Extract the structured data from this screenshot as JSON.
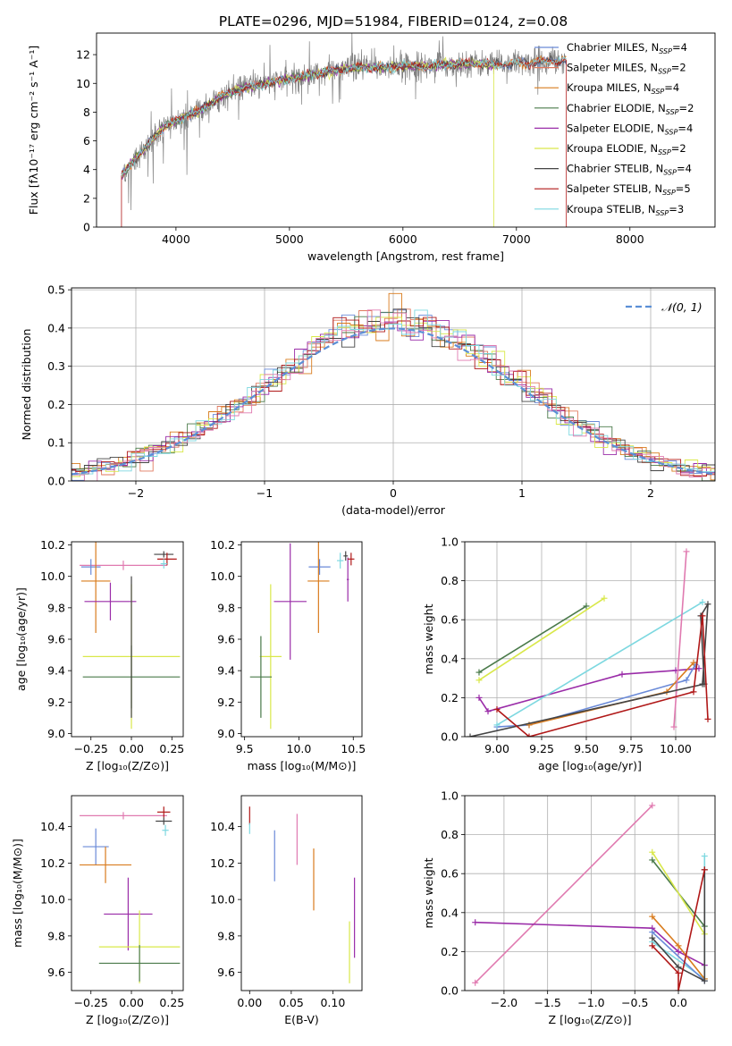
{
  "figure_title": "PLATE=0296, MJD=51984, FIBERID=0124, z=0.08",
  "colors": {
    "chabrier_miles": "#6a8ad8",
    "salpeter_miles": "#e07a5f",
    "kroupa_miles": "#d97c1e",
    "chabrier_elodie": "#4a7a4a",
    "salpeter_elodie": "#9a2ca8",
    "kroupa_elodie": "#d9e84a",
    "chabrier_stelib": "#444444",
    "salpeter_stelib": "#b01818",
    "kroupa_stelib": "#7dd8e0",
    "pink": "#e07ab0",
    "data": "#808080",
    "normal": "#5b8fd6"
  },
  "chart_data": [
    {
      "id": "spectrum",
      "type": "line",
      "title": "",
      "xlabel": "wavelength [Angstrom, rest frame]",
      "ylabel": "Flux [fλ10⁻¹⁷ erg cm⁻² s⁻¹ A⁻¹]",
      "xlim": [
        3300,
        8750
      ],
      "ylim": [
        0,
        13.5
      ],
      "xticks": [
        4000,
        5000,
        6000,
        7000,
        8000
      ],
      "yticks": [
        0,
        2,
        4,
        6,
        8,
        10,
        12
      ],
      "grid": false,
      "legend_position": "right",
      "legend": [
        {
          "label": "Chabrier MILES, N",
          "sub": "SSP",
          "tail": "=4",
          "color_key": "chabrier_miles"
        },
        {
          "label": "Salpeter MILES, N",
          "sub": "SSP",
          "tail": "=2",
          "color_key": "salpeter_miles"
        },
        {
          "label": "Kroupa MILES, N",
          "sub": "SSP",
          "tail": "=4",
          "color_key": "kroupa_miles"
        },
        {
          "label": "Chabrier ELODIE, N",
          "sub": "SSP",
          "tail": "=2",
          "color_key": "chabrier_elodie"
        },
        {
          "label": "Salpeter ELODIE, N",
          "sub": "SSP",
          "tail": "=4",
          "color_key": "salpeter_elodie"
        },
        {
          "label": "Kroupa ELODIE, N",
          "sub": "SSP",
          "tail": "=2",
          "color_key": "kroupa_elodie"
        },
        {
          "label": "Chabrier STELIB, N",
          "sub": "SSP",
          "tail": "=4",
          "color_key": "chabrier_stelib"
        },
        {
          "label": "Salpeter STELIB, N",
          "sub": "SSP",
          "tail": "=5",
          "color_key": "salpeter_stelib"
        },
        {
          "label": "Kroupa STELIB, N",
          "sub": "SSP",
          "tail": "=3",
          "color_key": "kroupa_stelib"
        }
      ],
      "continuum": {
        "x": [
          3520,
          3600,
          3700,
          3800,
          3900,
          4000,
          4100,
          4200,
          4300,
          4400,
          4500,
          4600,
          4800,
          5000,
          5200,
          5400,
          5600,
          5800,
          6000,
          6200,
          6400,
          6600,
          6800,
          7000,
          7200,
          7440
        ],
        "y": [
          3.6,
          4.4,
          5.2,
          6.2,
          7.0,
          7.4,
          7.8,
          8.0,
          8.6,
          9.1,
          9.4,
          9.7,
          10.0,
          10.3,
          10.6,
          10.9,
          11.1,
          11.1,
          11.2,
          11.2,
          11.3,
          11.4,
          11.3,
          11.4,
          11.5,
          11.6
        ]
      }
    },
    {
      "id": "residuals",
      "type": "bar",
      "title": "",
      "xlabel": "(data-model)/error",
      "ylabel": "Normed distribution",
      "xlim": [
        -2.5,
        2.5
      ],
      "ylim": [
        0,
        0.505
      ],
      "xticks": [
        -2,
        -1,
        0,
        1,
        2
      ],
      "xtick_labels": [
        "−2",
        "−1",
        "0",
        "1",
        "2"
      ],
      "yticks": [
        0.0,
        0.1,
        0.2,
        0.3,
        0.4,
        0.5
      ],
      "grid": true,
      "legend_position": "top-right",
      "legend": [
        {
          "label": "𝒩(0, 1)",
          "color_key": "normal",
          "style": "dashed"
        }
      ],
      "bin_width": 0.1,
      "normal_curve": {
        "mu": 0,
        "sigma": 1
      }
    },
    {
      "id": "z_age",
      "type": "scatter",
      "xlabel": "Z [log₁₀(Z/Z⊙)]",
      "ylabel": "age  [log₁₀(age/yr)]",
      "xlim": [
        -0.37,
        0.32
      ],
      "ylim": [
        8.98,
        10.22
      ],
      "xticks": [
        -0.25,
        0.0,
        0.25
      ],
      "xtick_labels": [
        "−0.25",
        "0.00",
        "0.25"
      ],
      "yticks": [
        9.0,
        9.2,
        9.4,
        9.6,
        9.8,
        10.0,
        10.2
      ],
      "grid": false,
      "points": [
        {
          "color_key": "pink",
          "x": -0.05,
          "xerr": 0.27,
          "y": 10.07,
          "yerr": 0.03
        },
        {
          "color_key": "chabrier_miles",
          "x": -0.25,
          "xerr": 0.06,
          "y": 10.06,
          "yerr": 0.05
        },
        {
          "color_key": "kroupa_miles",
          "x": -0.22,
          "xerr": 0.09,
          "y": 9.97,
          "yerr": 0.33
        },
        {
          "color_key": "salpeter_elodie",
          "x": -0.13,
          "xerr": 0.16,
          "y": 9.84,
          "yerr": 0.12
        },
        {
          "color_key": "kroupa_elodie",
          "x": 0.0,
          "xerr": 0.3,
          "y": 9.49,
          "yerr": 0.46
        },
        {
          "color_key": "chabrier_elodie",
          "x": 0.0,
          "xerr": 0.3,
          "y": 9.36,
          "yerr": 0.2
        },
        {
          "color_key": "chabrier_stelib",
          "x": 0.0,
          "xerr": 0.0,
          "y": 9.55,
          "yerr": 0.45
        },
        {
          "color_key": "chabrier_stelib",
          "x": 0.2,
          "xerr": 0.06,
          "y": 10.14,
          "yerr": 0.02
        },
        {
          "color_key": "salpeter_stelib",
          "x": 0.22,
          "xerr": 0.06,
          "y": 10.11,
          "yerr": 0.04
        },
        {
          "color_key": "kroupa_stelib",
          "x": 0.2,
          "xerr": 0.02,
          "y": 10.08,
          "yerr": 0.03
        }
      ]
    },
    {
      "id": "mass_age",
      "type": "scatter",
      "xlabel": "mass [log₁₀(M/M⊙)]",
      "ylabel": "",
      "xlim": [
        9.47,
        10.58
      ],
      "ylim": [
        8.98,
        10.22
      ],
      "xticks": [
        9.5,
        10.0,
        10.5
      ],
      "xtick_labels": [
        "9.5",
        "10.0",
        "10.5"
      ],
      "yticks": [
        9.0,
        9.2,
        9.4,
        9.6,
        9.8,
        10.0,
        10.2
      ],
      "grid": false,
      "points": [
        {
          "color_key": "chabrier_miles",
          "x": 10.19,
          "xerr": 0.1,
          "y": 10.06,
          "yerr": 0.05
        },
        {
          "color_key": "kroupa_miles",
          "x": 10.18,
          "xerr": 0.1,
          "y": 9.97,
          "yerr": 0.33
        },
        {
          "color_key": "salpeter_elodie",
          "x": 9.92,
          "xerr": 0.15,
          "y": 9.84,
          "yerr": 0.37
        },
        {
          "color_key": "kroupa_elodie",
          "x": 9.74,
          "xerr": 0.1,
          "y": 9.49,
          "yerr": 0.46
        },
        {
          "color_key": "chabrier_elodie",
          "x": 9.65,
          "xerr": 0.1,
          "y": 9.36,
          "yerr": 0.26
        },
        {
          "color_key": "kroupa_stelib",
          "x": 10.38,
          "xerr": 0.03,
          "y": 10.1,
          "yerr": 0.05
        },
        {
          "color_key": "chabrier_stelib",
          "x": 10.43,
          "xerr": 0.02,
          "y": 10.13,
          "yerr": 0.03
        },
        {
          "color_key": "salpeter_elodie",
          "x": 10.45,
          "xerr": 0.01,
          "y": 9.98,
          "yerr": 0.14
        },
        {
          "color_key": "salpeter_stelib",
          "x": 10.48,
          "xerr": 0.03,
          "y": 10.11,
          "yerr": 0.04
        }
      ]
    },
    {
      "id": "age_weight",
      "type": "line",
      "xlabel": "age  [log₁₀(age/yr)]",
      "ylabel": "mass weight",
      "xlim": [
        8.82,
        10.22
      ],
      "ylim": [
        0,
        1.0
      ],
      "xticks": [
        9.0,
        9.25,
        9.5,
        9.75,
        10.0
      ],
      "xtick_labels": [
        "9.00",
        "9.25",
        "9.50",
        "9.75",
        "10.00"
      ],
      "yticks": [
        0.0,
        0.2,
        0.4,
        0.6,
        0.8,
        1.0
      ],
      "grid": true,
      "series": [
        {
          "color_key": "chabrier_elodie",
          "x": [
            8.9,
            9.5
          ],
          "y": [
            0.33,
            0.67
          ]
        },
        {
          "color_key": "kroupa_elodie",
          "x": [
            8.9,
            9.6
          ],
          "y": [
            0.29,
            0.71
          ]
        },
        {
          "color_key": "salpeter_elodie",
          "x": [
            8.9,
            8.95,
            9.7,
            10.0,
            10.13
          ],
          "y": [
            0.2,
            0.13,
            0.32,
            0.34,
            0.35
          ]
        },
        {
          "color_key": "chabrier_miles",
          "x": [
            9.0,
            9.18,
            10.06,
            10.11
          ],
          "y": [
            0.05,
            0.06,
            0.29,
            0.37
          ]
        },
        {
          "color_key": "kroupa_miles",
          "x": [
            9.18,
            9.95,
            10.1
          ],
          "y": [
            0.06,
            0.23,
            0.38
          ]
        },
        {
          "color_key": "kroupa_stelib",
          "x": [
            9.0,
            10.15
          ],
          "y": [
            0.06,
            0.69
          ]
        },
        {
          "color_key": "pink",
          "x": [
            9.99,
            10.06
          ],
          "y": [
            0.05,
            0.95
          ]
        },
        {
          "color_key": "chabrier_stelib",
          "x": [
            8.85,
            10.16,
            10.14,
            10.18,
            10.15
          ],
          "y": [
            0.0,
            0.27,
            0.62,
            0.68,
            0.27
          ]
        },
        {
          "color_key": "salpeter_stelib",
          "x": [
            9.0,
            9.18,
            10.1,
            10.15,
            10.18
          ],
          "y": [
            0.14,
            0.0,
            0.23,
            0.62,
            0.09
          ]
        }
      ]
    },
    {
      "id": "z_mass",
      "type": "scatter",
      "xlabel": "Z [log₁₀(Z/Z⊙)]",
      "ylabel": "mass [log₁₀(M/M⊙)]",
      "xlim": [
        -0.37,
        0.32
      ],
      "ylim": [
        9.5,
        10.57
      ],
      "xticks": [
        -0.25,
        0.0,
        0.25
      ],
      "xtick_labels": [
        "−0.25",
        "0.00",
        "0.25"
      ],
      "yticks": [
        9.6,
        9.8,
        10.0,
        10.2,
        10.4
      ],
      "grid": false,
      "points": [
        {
          "color_key": "pink",
          "x": -0.05,
          "xerr": 0.27,
          "y": 10.46,
          "yerr": 0.02
        },
        {
          "color_key": "chabrier_miles",
          "x": -0.22,
          "xerr": 0.08,
          "y": 10.29,
          "yerr": 0.1
        },
        {
          "color_key": "kroupa_miles",
          "x": -0.16,
          "xerr": 0.16,
          "y": 10.19,
          "yerr": 0.1
        },
        {
          "color_key": "salpeter_elodie",
          "x": -0.02,
          "xerr": 0.15,
          "y": 9.92,
          "yerr": 0.2
        },
        {
          "color_key": "kroupa_elodie",
          "x": 0.05,
          "xerr": 0.25,
          "y": 9.74,
          "yerr": 0.2
        },
        {
          "color_key": "chabrier_elodie",
          "x": 0.05,
          "xerr": 0.25,
          "y": 9.65,
          "yerr": 0.1
        },
        {
          "color_key": "salpeter_stelib",
          "x": 0.2,
          "xerr": 0.04,
          "y": 10.48,
          "yerr": 0.03
        },
        {
          "color_key": "chabrier_stelib",
          "x": 0.2,
          "xerr": 0.05,
          "y": 10.43,
          "yerr": 0.02
        },
        {
          "color_key": "kroupa_stelib",
          "x": 0.21,
          "xerr": 0.02,
          "y": 10.38,
          "yerr": 0.03
        }
      ]
    },
    {
      "id": "ebv_mass",
      "type": "scatter",
      "xlabel": "E(B-V)",
      "ylabel": "",
      "xlim": [
        -0.01,
        0.135
      ],
      "ylim": [
        9.5,
        10.57
      ],
      "xticks": [
        0.0,
        0.05,
        0.1
      ],
      "xtick_labels": [
        "0.00",
        "0.05",
        "0.10"
      ],
      "yticks": [
        9.6,
        9.8,
        10.0,
        10.2,
        10.4
      ],
      "grid": false,
      "points": [
        {
          "color_key": "salpeter_stelib",
          "x": 0.0,
          "xerr": 0.0,
          "y": 10.46,
          "yerr": 0.05
        },
        {
          "color_key": "kroupa_stelib",
          "x": 0.0,
          "xerr": 0.0,
          "y": 10.39,
          "yerr": 0.03
        },
        {
          "color_key": "chabrier_miles",
          "x": 0.03,
          "xerr": 0.0,
          "y": 10.24,
          "yerr": 0.14
        },
        {
          "color_key": "pink",
          "x": 0.057,
          "xerr": 0.0,
          "y": 10.33,
          "yerr": 0.14
        },
        {
          "color_key": "kroupa_miles",
          "x": 0.077,
          "xerr": 0.0,
          "y": 10.11,
          "yerr": 0.17
        },
        {
          "color_key": "kroupa_elodie",
          "x": 0.12,
          "xerr": 0.0,
          "y": 9.71,
          "yerr": 0.17
        },
        {
          "color_key": "salpeter_elodie",
          "x": 0.126,
          "xerr": 0.0,
          "y": 9.9,
          "yerr": 0.22
        }
      ]
    },
    {
      "id": "z_weight",
      "type": "line",
      "xlabel": "Z [log₁₀(Z/Z⊙)]",
      "ylabel": "mass weight",
      "xlim": [
        -2.45,
        0.42
      ],
      "ylim": [
        0,
        1.0
      ],
      "xticks": [
        -2.0,
        -1.5,
        -1.0,
        -0.5,
        0.0
      ],
      "xtick_labels": [
        "−2.0",
        "−1.5",
        "−1.0",
        "−0.5",
        "0.0"
      ],
      "yticks": [
        0.0,
        0.2,
        0.4,
        0.6,
        0.8,
        1.0
      ],
      "grid": true,
      "series": [
        {
          "color_key": "pink",
          "x": [
            -2.33,
            -0.3
          ],
          "y": [
            0.04,
            0.95
          ]
        },
        {
          "color_key": "salpeter_elodie",
          "x": [
            -2.33,
            -0.3,
            0.0,
            0.3
          ],
          "y": [
            0.35,
            0.32,
            0.2,
            0.13
          ]
        },
        {
          "color_key": "chabrier_elodie",
          "x": [
            -0.3,
            0.3
          ],
          "y": [
            0.67,
            0.33
          ]
        },
        {
          "color_key": "kroupa_elodie",
          "x": [
            -0.3,
            0.3
          ],
          "y": [
            0.71,
            0.29
          ]
        },
        {
          "color_key": "kroupa_stelib",
          "x": [
            -0.3,
            0.3,
            0.3
          ],
          "y": [
            0.25,
            0.06,
            0.69
          ]
        },
        {
          "color_key": "kroupa_miles",
          "x": [
            -0.3,
            0.0,
            0.3
          ],
          "y": [
            0.38,
            0.23,
            0.06
          ]
        },
        {
          "color_key": "chabrier_miles",
          "x": [
            -0.3,
            0.3
          ],
          "y": [
            0.3,
            0.05
          ]
        },
        {
          "color_key": "chabrier_stelib",
          "x": [
            -0.3,
            0.0,
            0.3,
            0.3
          ],
          "y": [
            0.27,
            0.12,
            0.05,
            0.62
          ]
        },
        {
          "color_key": "salpeter_stelib",
          "x": [
            -0.3,
            0.0,
            0.0,
            0.3
          ],
          "y": [
            0.23,
            0.09,
            0.0,
            0.62
          ]
        }
      ]
    }
  ]
}
